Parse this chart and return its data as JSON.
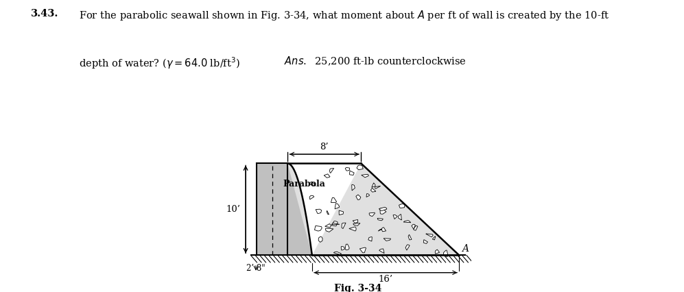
{
  "title_number": "3.43.",
  "line1": "For the parabolic seawall shown in Fig. 3-34, what moment about $A$ per ft of wall is created by the 10-ft",
  "line2_part1": "depth of water? ($\\gamma = 64.0$ lb/ft$^3$)",
  "line2_part2": "$\\it{Ans.}$  25,200 ft-lb counterclockwise",
  "fig_label": "Fig. 3-34",
  "label_parabola": "Parabola",
  "label_10ft": "10’",
  "label_8ft": "8’",
  "label_16ft": "16’",
  "label_28in": "2’ 8\"",
  "label_A": "A",
  "bg_color": "#ffffff",
  "water_color": "#c0c0c0",
  "wall_bg_color": "#e8e8e8"
}
